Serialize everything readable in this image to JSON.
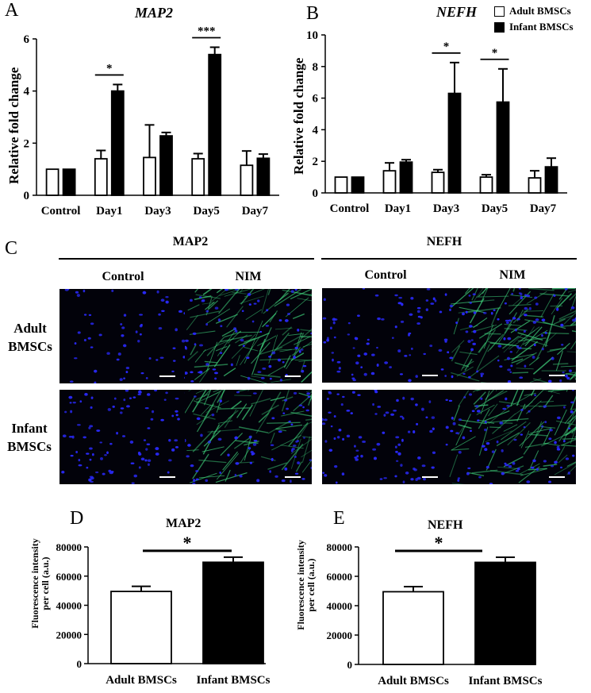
{
  "panels": {
    "a": {
      "letter": "A",
      "title": "MAP2",
      "ylabel": "Relative fold change"
    },
    "b": {
      "letter": "B",
      "title": "NEFH",
      "ylabel": "Relative fold change"
    },
    "c": {
      "letter": "C",
      "group_left": "MAP2",
      "group_right": "NEFH",
      "col_control": "Control",
      "col_nim": "NIM",
      "row_adult_line1": "Adult",
      "row_adult_line2": "BMSCs",
      "row_infant_line1": "Infant",
      "row_infant_line2": "BMSCs"
    },
    "d": {
      "letter": "D",
      "title": "MAP2",
      "ylabel_line1": "Fluorescence intensity",
      "ylabel_line2": "per cell (a.u.)"
    },
    "e": {
      "letter": "E",
      "title": "NEFH",
      "ylabel_line1": "Fluorescence intensity",
      "ylabel_line2": "per cell (a.u.)"
    }
  },
  "legend": {
    "adult": "Adult BMSCs",
    "infant": "Infant BMSCs"
  },
  "colors": {
    "adult_fill": "#ffffff",
    "infant_fill": "#000000",
    "nucleus": "#2a2aff",
    "fiber": "#3fd07a"
  },
  "chart_data": [
    {
      "type": "bar",
      "title": "MAP2",
      "ylabel": "Relative fold change",
      "categories": [
        "Control",
        "Day1",
        "Day3",
        "Day5",
        "Day7"
      ],
      "ylim": [
        0,
        6
      ],
      "yticks": [
        0,
        2,
        4,
        6
      ],
      "series": [
        {
          "name": "Adult BMSCs",
          "values": [
            1.0,
            1.4,
            1.45,
            1.4,
            1.15
          ],
          "errors": [
            0,
            0.32,
            1.25,
            0.2,
            0.55
          ]
        },
        {
          "name": "Infant BMSCs",
          "values": [
            1.0,
            4.0,
            2.28,
            5.4,
            1.42
          ],
          "errors": [
            0,
            0.25,
            0.13,
            0.28,
            0.16
          ]
        }
      ],
      "significance": [
        {
          "category": "Day1",
          "label": "*"
        },
        {
          "category": "Day5",
          "label": "***"
        }
      ]
    },
    {
      "type": "bar",
      "title": "NEFH",
      "ylabel": "Relative fold change",
      "categories": [
        "Control",
        "Day1",
        "Day3",
        "Day5",
        "Day7"
      ],
      "ylim": [
        0,
        10
      ],
      "yticks": [
        0,
        2,
        4,
        6,
        8,
        10
      ],
      "series": [
        {
          "name": "Adult BMSCs",
          "values": [
            1.0,
            1.4,
            1.3,
            1.0,
            0.95
          ],
          "errors": [
            0,
            0.5,
            0.17,
            0.15,
            0.45
          ]
        },
        {
          "name": "Infant BMSCs",
          "values": [
            1.0,
            1.95,
            6.3,
            5.75,
            1.65
          ],
          "errors": [
            0,
            0.15,
            1.95,
            2.1,
            0.55
          ]
        }
      ],
      "significance": [
        {
          "category": "Day3",
          "label": "*"
        },
        {
          "category": "Day5",
          "label": "*"
        }
      ]
    },
    {
      "type": "bar",
      "title": "MAP2",
      "ylabel": "Fluorescence intensity per cell (a.u.)",
      "categories": [
        "Adult BMSCs",
        "Infant BMSCs"
      ],
      "ylim": [
        0,
        80000
      ],
      "yticks": [
        0,
        20000,
        40000,
        60000,
        80000
      ],
      "values": [
        49500,
        69500
      ],
      "errors": [
        3500,
        3500
      ],
      "significance": [
        {
          "label": "*"
        }
      ]
    },
    {
      "type": "bar",
      "title": "NEFH",
      "ylabel": "Fluorescence intensity per cell (a.u.)",
      "categories": [
        "Adult BMSCs",
        "Infant BMSCs"
      ],
      "ylim": [
        0,
        80000
      ],
      "yticks": [
        0,
        20000,
        40000,
        60000,
        80000
      ],
      "values": [
        49500,
        69500
      ],
      "errors": [
        3500,
        3500
      ],
      "significance": [
        {
          "label": "*"
        }
      ]
    }
  ]
}
